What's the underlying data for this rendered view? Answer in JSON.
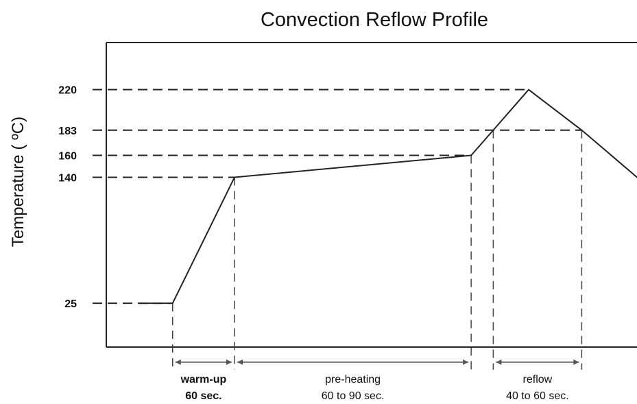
{
  "chart_data": {
    "type": "line",
    "title": "Convection Reflow Profile",
    "ylabel": "Temperature ( ºC)",
    "xlabel": "",
    "y_ticks": [
      25,
      140,
      160,
      183,
      220
    ],
    "series": [
      {
        "x": [
          0,
          15,
          43,
          150,
          160,
          176,
          200,
          225
        ],
        "y": [
          25,
          25,
          140,
          160,
          183,
          220,
          183,
          140
        ]
      }
    ],
    "ylim": [
      -15,
      263
    ],
    "xlim": [
      -15,
      225
    ],
    "phases": [
      {
        "label_line1": "warm-up",
        "label_line2": "60 sec.",
        "start": 15,
        "end": 43,
        "bold": true
      },
      {
        "label_line1": "pre-heating",
        "label_line2": "60 to 90 sec.",
        "start": 43,
        "end": 150,
        "bold": false
      },
      {
        "label_line1": "reflow",
        "label_line2": "40 to 60 sec.",
        "start": 160,
        "end": 200,
        "bold": false
      }
    ],
    "grid": false,
    "legend": "none"
  }
}
